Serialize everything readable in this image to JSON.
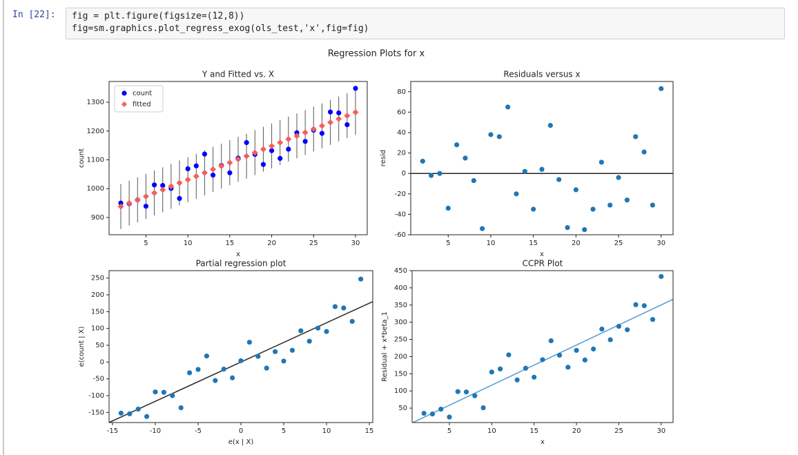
{
  "cell": {
    "prompt": "In [22]:",
    "code": [
      "fig = plt.figure(figsize=(12,8))",
      "fig=sm.graphics.plot_regress_exog(ols_test,'x',fig=fig)"
    ]
  },
  "figure_title": "Regression Plots for x",
  "chart_data": [
    {
      "type": "scatter",
      "title": "Y and Fitted vs. X",
      "xlabel": "x",
      "ylabel": "count",
      "x": [
        2,
        3,
        4,
        5,
        6,
        7,
        8,
        9,
        10,
        11,
        12,
        13,
        14,
        15,
        16,
        17,
        18,
        19,
        20,
        21,
        22,
        23,
        24,
        25,
        26,
        27,
        28,
        29,
        30
      ],
      "series": [
        {
          "name": "count",
          "color": "#0000ff",
          "marker": "circle",
          "values": [
            950,
            948,
            961,
            939,
            1013,
            1011,
            1001,
            966,
            1069,
            1079,
            1120,
            1047,
            1080,
            1055,
            1106,
            1160,
            1119,
            1084,
            1132,
            1105,
            1137,
            1194,
            1164,
            1203,
            1192,
            1266,
            1263,
            1222,
            1348
          ]
        },
        {
          "name": "fitted",
          "color": "#f25f5f",
          "marker": "diamond",
          "values": [
            938,
            950,
            961,
            973,
            985,
            996,
            1008,
            1020,
            1031,
            1043,
            1055,
            1067,
            1078,
            1090,
            1102,
            1113,
            1125,
            1137,
            1148,
            1160,
            1172,
            1183,
            1195,
            1207,
            1218,
            1230,
            1242,
            1253,
            1265
          ]
        }
      ],
      "interval_halfwidth": 78,
      "xlim": [
        0.6,
        31.4
      ],
      "xticks": [
        5,
        10,
        15,
        20,
        25,
        30
      ],
      "ylim": [
        840,
        1372
      ],
      "yticks": [
        900,
        1000,
        1100,
        1200,
        1300
      ],
      "legend": "upper-left"
    },
    {
      "type": "scatter",
      "title": "Residuals versus x",
      "xlabel": "x",
      "ylabel": "resid",
      "x": [
        2,
        3,
        4,
        5,
        6,
        7,
        8,
        9,
        10,
        11,
        12,
        13,
        14,
        15,
        16,
        17,
        18,
        19,
        20,
        21,
        22,
        23,
        24,
        25,
        26,
        27,
        28,
        29,
        30
      ],
      "series": [
        {
          "color": "#1f77b4",
          "marker": "circle",
          "values": [
            12,
            -2,
            0,
            -34,
            28,
            15,
            -7,
            -54,
            38,
            36,
            65,
            -20,
            2,
            -35,
            4,
            47,
            -6,
            -53,
            -16,
            -55,
            -35,
            11,
            -31,
            -4,
            -26,
            36,
            21,
            -31,
            83
          ]
        }
      ],
      "hline": 0,
      "xlim": [
        0.6,
        31.4
      ],
      "xticks": [
        5,
        10,
        15,
        20,
        25,
        30
      ],
      "ylim": [
        -60,
        90
      ],
      "yticks": [
        -60,
        -40,
        -20,
        0,
        20,
        40,
        60,
        80
      ]
    },
    {
      "type": "scatter",
      "title": "Partial regression plot",
      "xlabel": "e(x | X)",
      "ylabel": "e(count | X)",
      "x": [
        -14,
        -13,
        -12,
        -11,
        -10,
        -9,
        -8,
        -7,
        -6,
        -5,
        -4,
        -3,
        -2,
        -1,
        0,
        1,
        2,
        3,
        4,
        5,
        6,
        7,
        8,
        9,
        10,
        11,
        12,
        13,
        14
      ],
      "series": [
        {
          "color": "#1f77b4",
          "marker": "circle",
          "values": [
            -152,
            -154,
            -140,
            -162,
            -89,
            -90,
            -100,
            -136,
            -32,
            -22,
            18,
            -55,
            -21,
            -47,
            4,
            59,
            17,
            -18,
            31,
            3,
            35,
            93,
            62,
            101,
            91,
            165,
            161,
            121,
            247
          ]
        }
      ],
      "fit_line": {
        "slope": 11.68,
        "intercept": 0,
        "color": "#333333"
      },
      "xlim": [
        -15.4,
        15.4
      ],
      "xticks": [
        -15,
        -10,
        -5,
        0,
        5,
        10,
        15
      ],
      "ylim": [
        -180,
        272
      ],
      "yticks": [
        -150,
        -100,
        -50,
        0,
        50,
        100,
        150,
        200,
        250
      ]
    },
    {
      "type": "scatter",
      "title": "CCPR Plot",
      "xlabel": "x",
      "ylabel": "Residual + x*beta_1",
      "x": [
        2,
        3,
        4,
        5,
        6,
        7,
        8,
        9,
        10,
        11,
        12,
        13,
        14,
        15,
        16,
        17,
        18,
        19,
        20,
        21,
        22,
        23,
        24,
        25,
        26,
        27,
        28,
        29,
        30
      ],
      "series": [
        {
          "color": "#1f77b4",
          "marker": "circle",
          "values": [
            35,
            33,
            47,
            24,
            98,
            97,
            86,
            51,
            155,
            164,
            205,
            132,
            166,
            140,
            191,
            246,
            204,
            169,
            218,
            190,
            222,
            280,
            249,
            288,
            278,
            351,
            348,
            308,
            433
          ]
        }
      ],
      "fit_line": {
        "slope": 11.68,
        "intercept": 0,
        "color": "#5a9fd4"
      },
      "xlim": [
        0.6,
        31.4
      ],
      "xticks": [
        5,
        10,
        15,
        20,
        25,
        30
      ],
      "ylim": [
        8,
        450
      ],
      "yticks": [
        50,
        100,
        150,
        200,
        250,
        300,
        350,
        400,
        450
      ]
    }
  ]
}
